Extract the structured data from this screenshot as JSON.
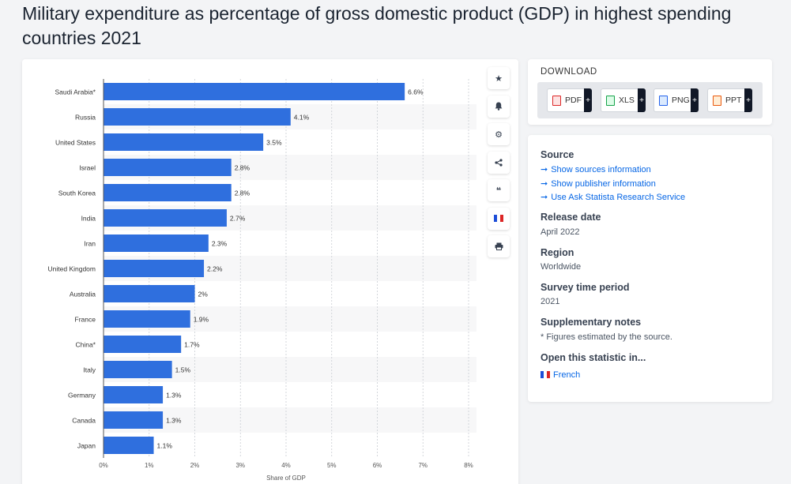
{
  "page": {
    "title": "Military expenditure as percentage of gross domestic product (GDP) in highest spending countries 2021"
  },
  "toolbar": {
    "icons": [
      "star-icon",
      "bell-icon",
      "gear-icon",
      "share-icon",
      "quote-icon",
      "french-flag-icon",
      "print-icon"
    ]
  },
  "download": {
    "title": "DOWNLOAD",
    "buttons": [
      {
        "label": "PDF",
        "color": "#dc2626"
      },
      {
        "label": "XLS",
        "color": "#16a34a"
      },
      {
        "label": "PNG",
        "color": "#2563eb"
      },
      {
        "label": "PPT",
        "color": "#ea580c"
      }
    ],
    "plus": "+"
  },
  "info": {
    "source_head": "Source",
    "links": [
      "Show sources information",
      "Show publisher information",
      "Use Ask Statista Research Service"
    ],
    "release_head": "Release date",
    "release_value": "April 2022",
    "region_head": "Region",
    "region_value": "Worldwide",
    "survey_head": "Survey time period",
    "survey_value": "2021",
    "notes_head": "Supplementary notes",
    "notes_value": "* Figures estimated by the source.",
    "open_head": "Open this statistic in...",
    "open_value": "French"
  },
  "chart_data": {
    "type": "bar",
    "orientation": "horizontal",
    "categories": [
      "Saudi Arabia*",
      "Russia",
      "United States",
      "Israel",
      "South Korea",
      "India",
      "Iran",
      "United Kingdom",
      "Australia",
      "France",
      "China*",
      "Italy",
      "Germany",
      "Canada",
      "Japan"
    ],
    "values": [
      6.6,
      4.1,
      3.5,
      2.8,
      2.8,
      2.7,
      2.3,
      2.2,
      2.0,
      1.9,
      1.7,
      1.5,
      1.3,
      1.3,
      1.1
    ],
    "value_labels": [
      "6.6%",
      "4.1%",
      "3.5%",
      "2.8%",
      "2.8%",
      "2.7%",
      "2.3%",
      "2.2%",
      "2%",
      "1.9%",
      "1.7%",
      "1.5%",
      "1.3%",
      "1.3%",
      "1.1%"
    ],
    "xticks": [
      "0%",
      "1%",
      "2%",
      "3%",
      "4%",
      "5%",
      "6%",
      "7%",
      "8%"
    ],
    "xlabel": "Share of GDP",
    "xlim": [
      0,
      8
    ],
    "bar_color": "#2f6fde",
    "grid": true
  }
}
